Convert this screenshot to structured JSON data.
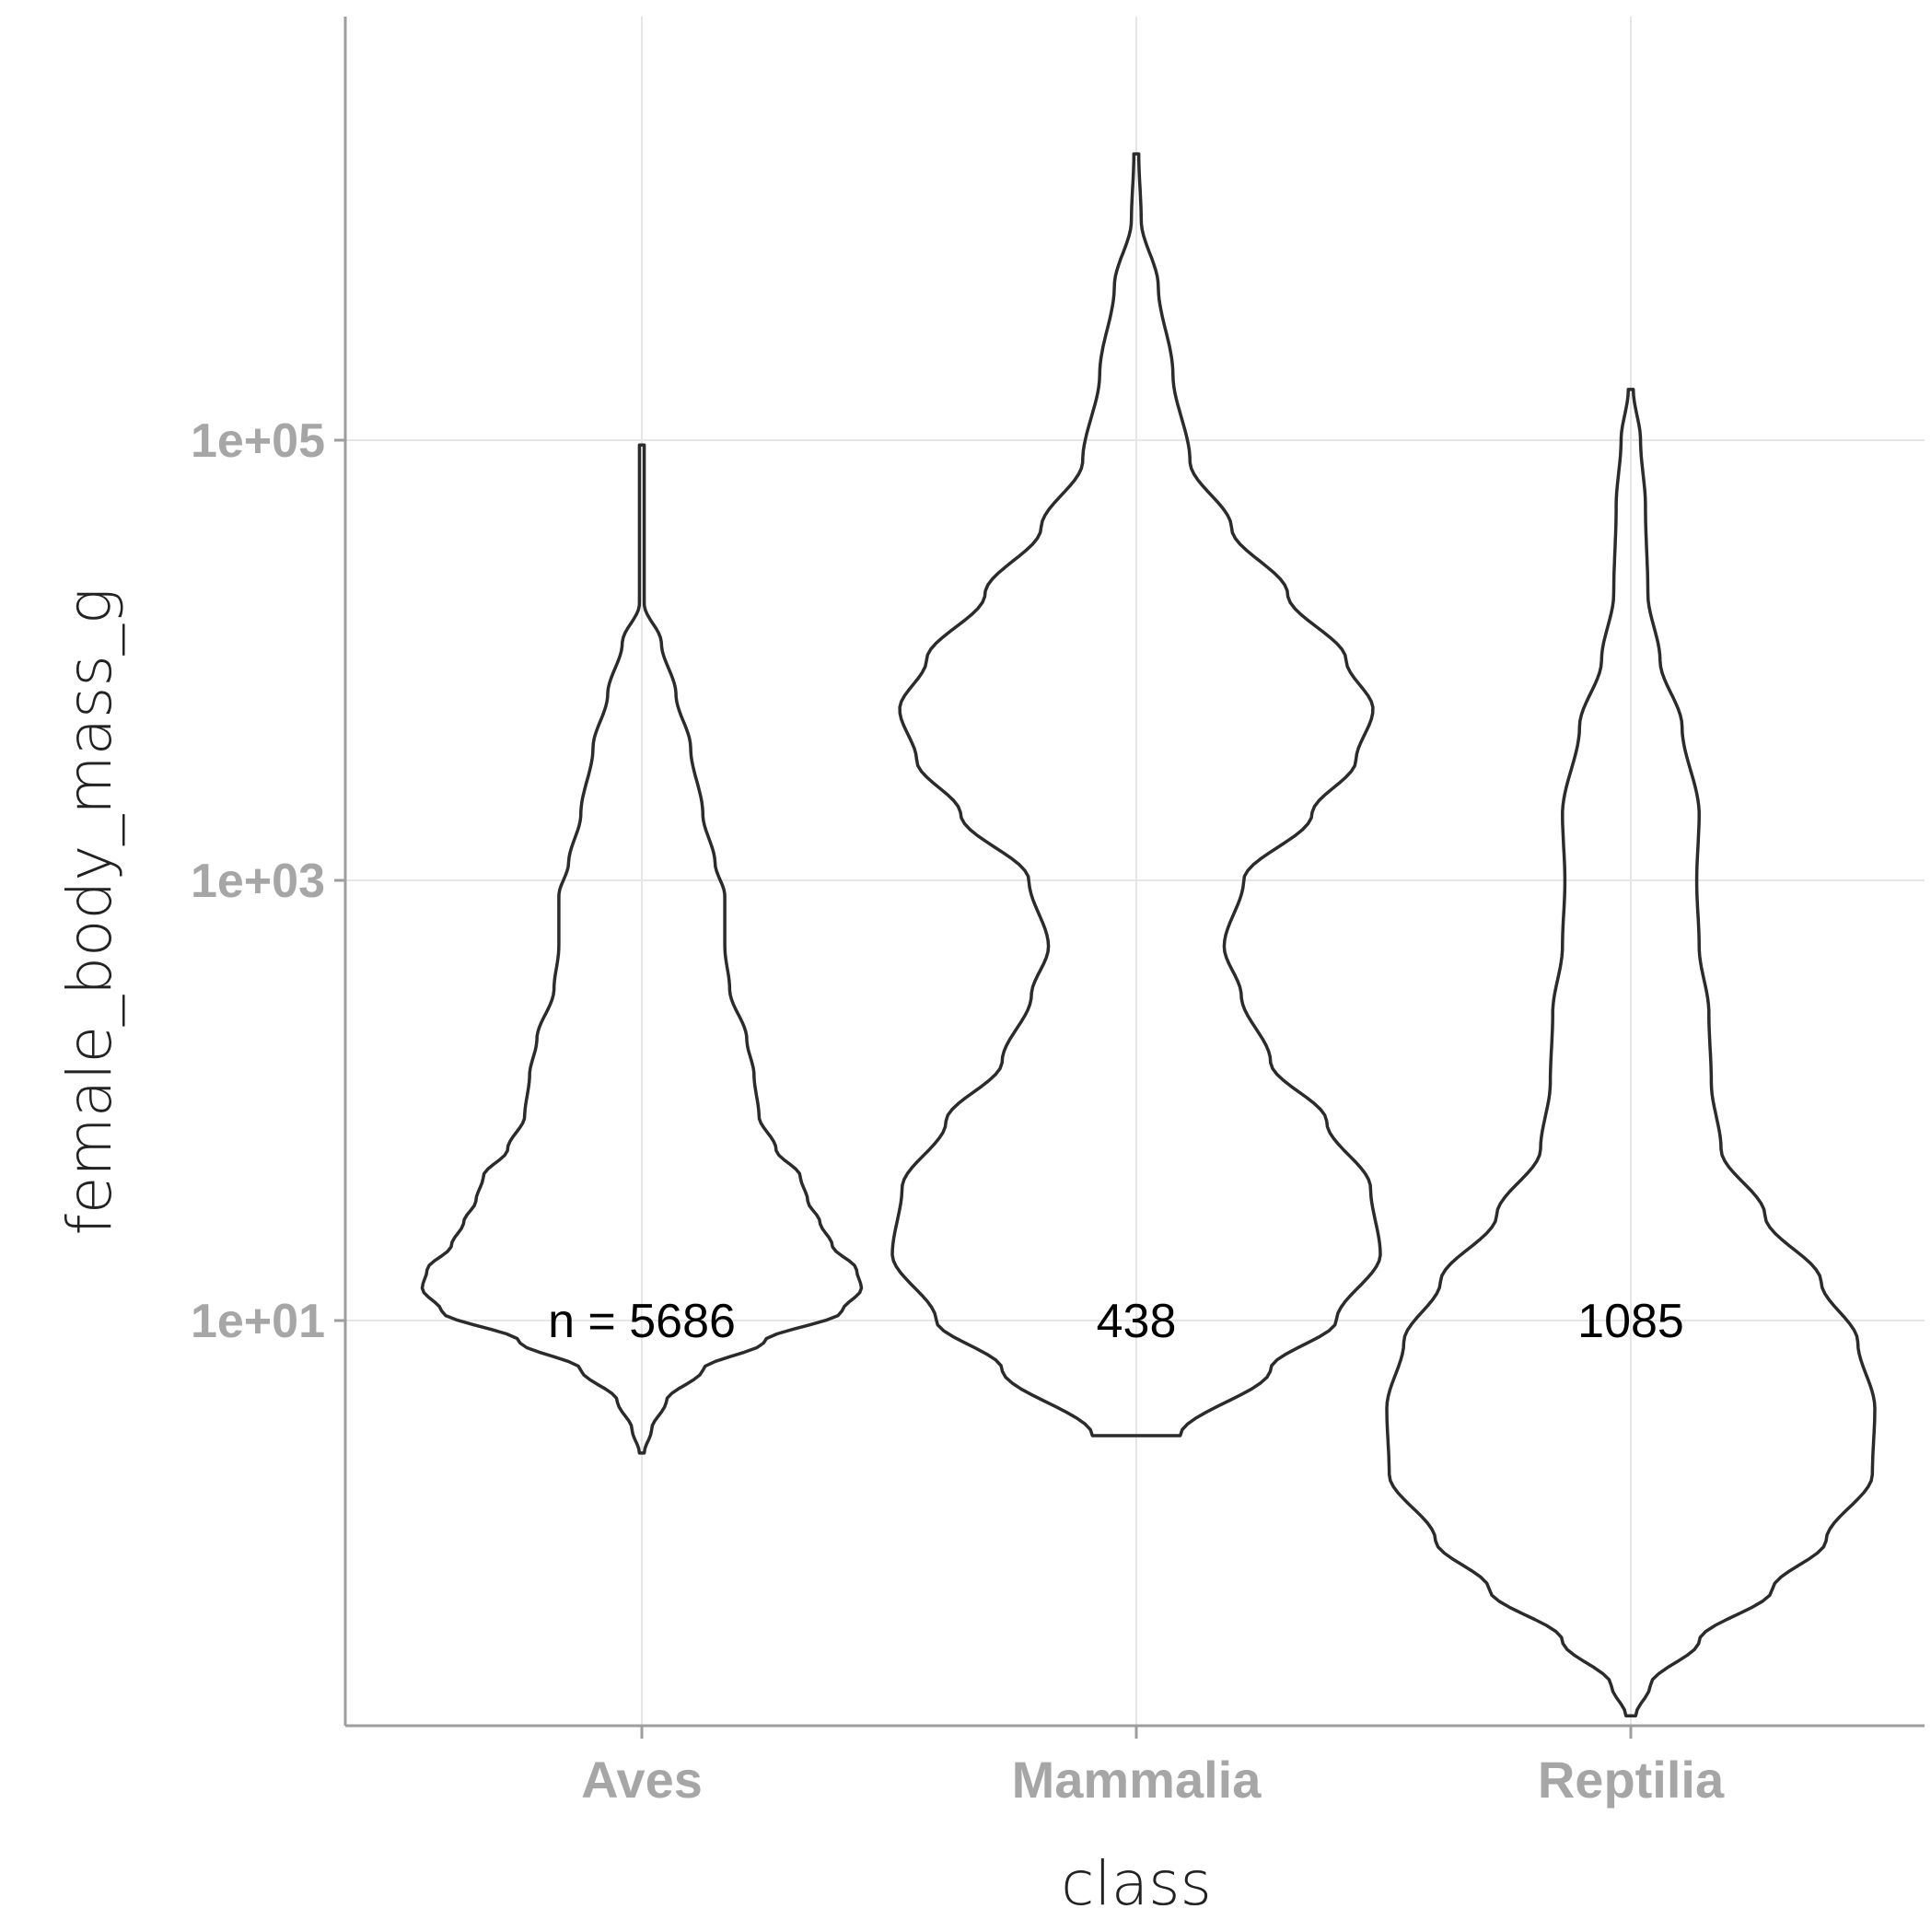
{
  "chart_data": {
    "type": "violin",
    "xlabel": "class",
    "ylabel": "female_body_mass_g",
    "y_scale": "log10",
    "ylim": [
      0.1,
      2000000
    ],
    "y_ticks": [
      {
        "value": 10,
        "label": "1e+01"
      },
      {
        "value": 1000,
        "label": "1e+03"
      },
      {
        "value": 100000,
        "label": "1e+05"
      }
    ],
    "grid": true,
    "categories": [
      "Aves",
      "Mammalia",
      "Reptilia"
    ],
    "count_labels": [
      "n = 5686",
      "438",
      "1085"
    ],
    "count_label_y": 10,
    "max_density": 1.0,
    "violins": [
      {
        "name": "Aves",
        "min": 2.5,
        "max": 95000,
        "profile": [
          [
            2.5,
            0.01
          ],
          [
            3.2,
            0.04
          ],
          [
            4.3,
            0.1
          ],
          [
            6,
            0.25
          ],
          [
            8,
            0.5
          ],
          [
            11,
            0.82
          ],
          [
            14,
            0.9
          ],
          [
            17,
            0.88
          ],
          [
            22,
            0.78
          ],
          [
            28,
            0.73
          ],
          [
            35,
            0.68
          ],
          [
            45,
            0.65
          ],
          [
            60,
            0.55
          ],
          [
            85,
            0.48
          ],
          [
            130,
            0.46
          ],
          [
            190,
            0.43
          ],
          [
            320,
            0.36
          ],
          [
            500,
            0.34
          ],
          [
            850,
            0.34
          ],
          [
            1200,
            0.3
          ],
          [
            2000,
            0.25
          ],
          [
            4000,
            0.2
          ],
          [
            7000,
            0.14
          ],
          [
            12000,
            0.08
          ],
          [
            18000,
            0.01
          ],
          [
            95000,
            0.01
          ]
        ]
      },
      {
        "name": "Mammalia",
        "min": 3.0,
        "max": 2000000,
        "profile": [
          [
            3.0,
            0.18
          ],
          [
            6,
            0.55
          ],
          [
            10,
            0.82
          ],
          [
            20,
            1.0
          ],
          [
            40,
            0.96
          ],
          [
            80,
            0.78
          ],
          [
            150,
            0.55
          ],
          [
            300,
            0.43
          ],
          [
            500,
            0.36
          ],
          [
            1000,
            0.44
          ],
          [
            2000,
            0.72
          ],
          [
            3500,
            0.9
          ],
          [
            6000,
            0.97
          ],
          [
            10000,
            0.86
          ],
          [
            20000,
            0.62
          ],
          [
            40000,
            0.39
          ],
          [
            80000,
            0.22
          ],
          [
            200000,
            0.15
          ],
          [
            500000,
            0.09
          ],
          [
            1000000,
            0.02
          ],
          [
            2000000,
            0.01
          ]
        ]
      },
      {
        "name": "Reptilia",
        "min": 0.16,
        "max": 170000,
        "profile": [
          [
            0.16,
            0.02
          ],
          [
            0.22,
            0.08
          ],
          [
            0.35,
            0.28
          ],
          [
            0.6,
            0.58
          ],
          [
            1.0,
            0.8
          ],
          [
            2.0,
            0.99
          ],
          [
            4.0,
            1.0
          ],
          [
            8.0,
            0.93
          ],
          [
            15,
            0.78
          ],
          [
            30,
            0.55
          ],
          [
            60,
            0.37
          ],
          [
            120,
            0.33
          ],
          [
            250,
            0.32
          ],
          [
            500,
            0.28
          ],
          [
            1000,
            0.27
          ],
          [
            2000,
            0.28
          ],
          [
            5000,
            0.21
          ],
          [
            10000,
            0.12
          ],
          [
            20000,
            0.07
          ],
          [
            50000,
            0.06
          ],
          [
            100000,
            0.04
          ],
          [
            170000,
            0.01
          ]
        ]
      }
    ]
  }
}
